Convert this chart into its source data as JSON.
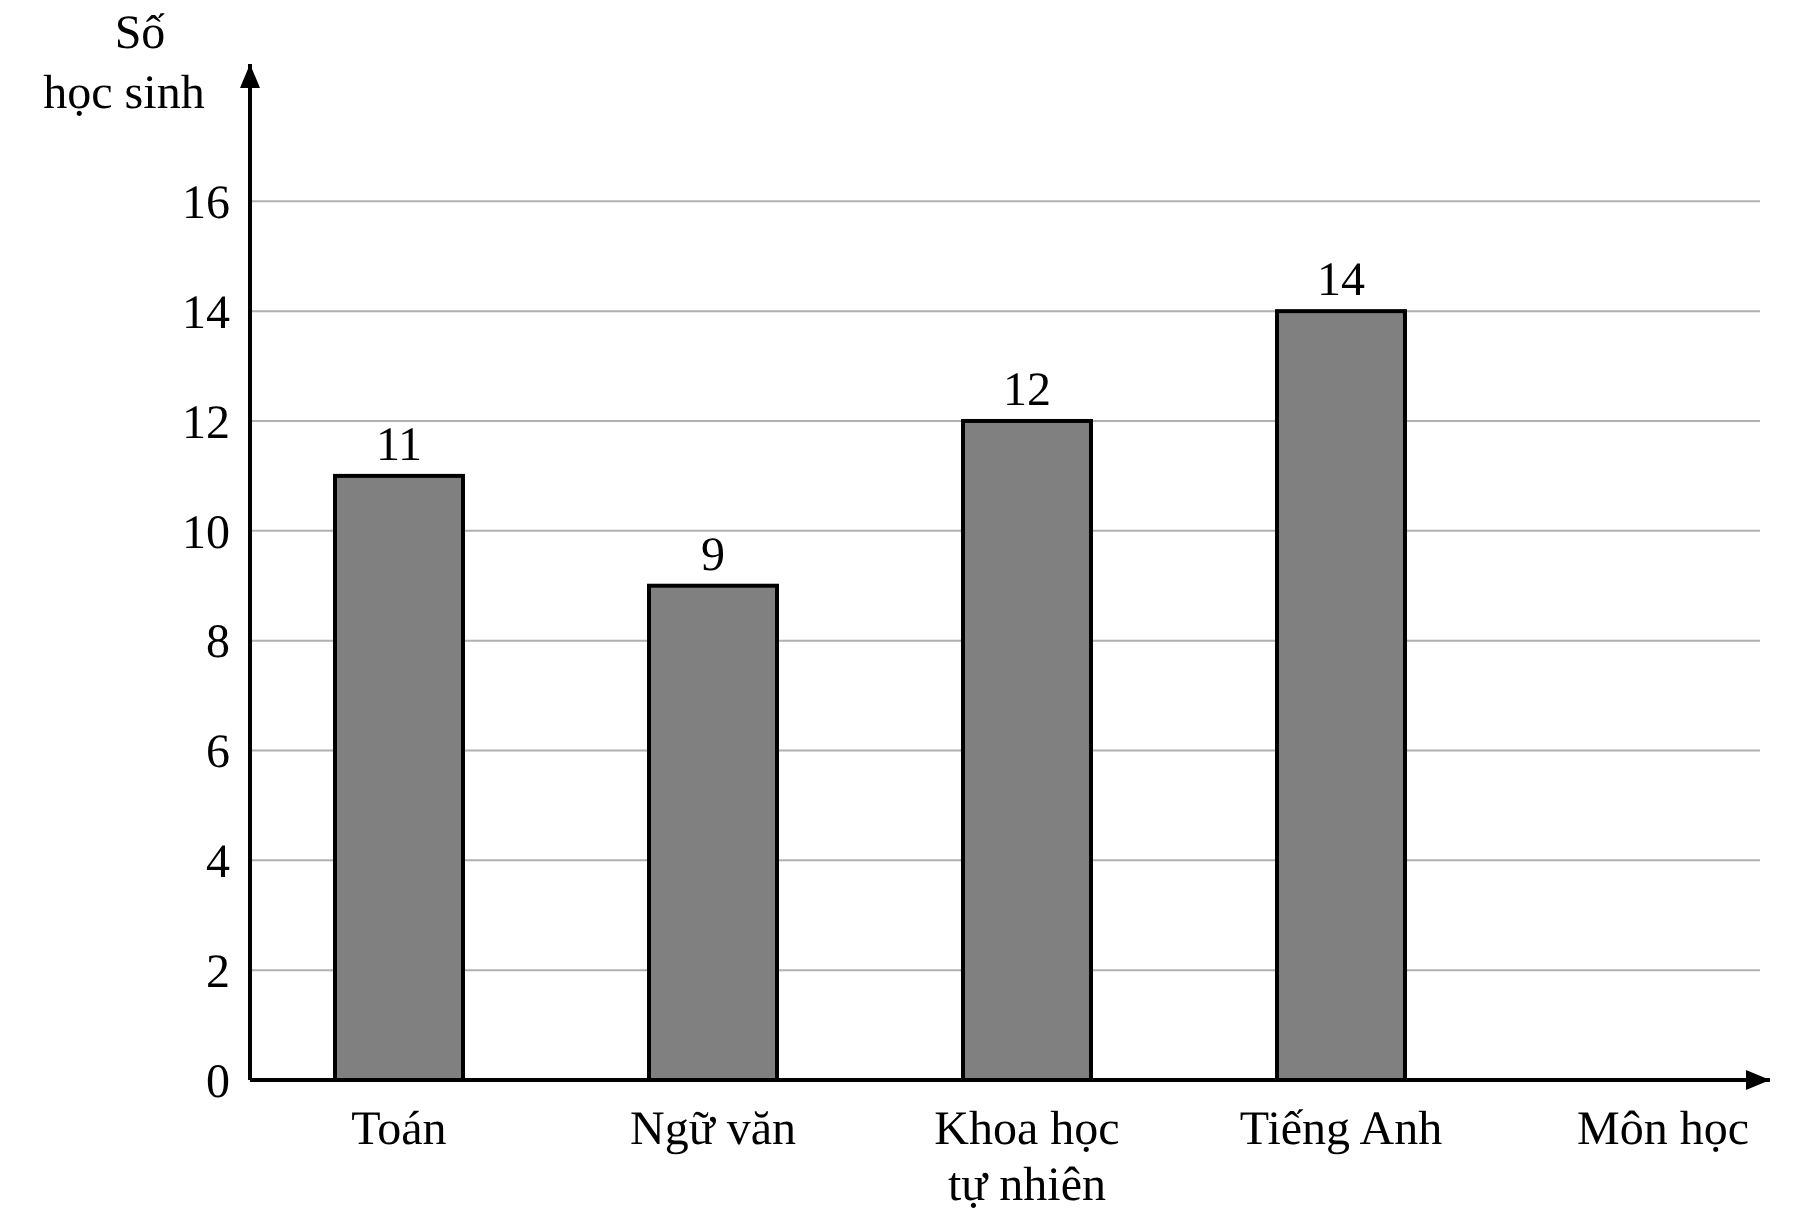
{
  "chart_data": {
    "type": "bar",
    "xlabel": "Môn học",
    "ylabel": "Số học sinh",
    "categories": [
      "Toán",
      "Ngữ văn",
      "Khoa học tự nhiên",
      "Tiếng Anh"
    ],
    "values": [
      11,
      9,
      12,
      14
    ],
    "color": "#808080",
    "ylim": [
      0,
      18.5
    ],
    "yticks": [
      0,
      2,
      4,
      6,
      8,
      10,
      12,
      14,
      16
    ],
    "grid": "y",
    "data_labels": true
  }
}
